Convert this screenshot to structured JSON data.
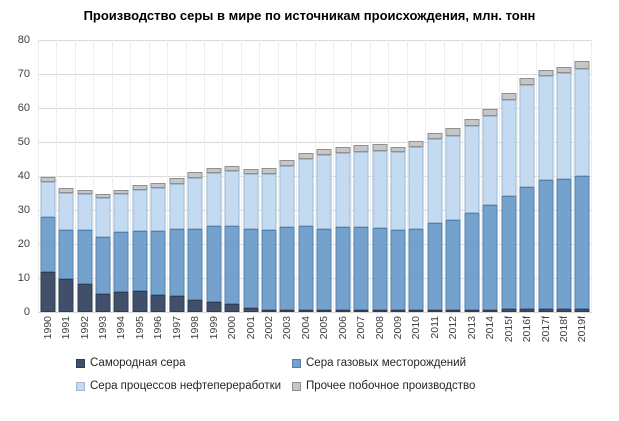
{
  "title": "Производство серы в мире по источникам происхождения, млн. тонн",
  "colors": {
    "native_sulfur": "#424f6a",
    "gas_field_sulfur": "#74a2cd",
    "refinery_sulfur": "#c3daf0",
    "other_byproduct": "#c6c6c6",
    "gridline": "#d9d9d9",
    "axis_text": "#404040"
  },
  "chart_data": {
    "type": "bar",
    "stacked": true,
    "title": "Производство серы в мире по источникам происхождения, млн. тонн",
    "xlabel": "",
    "ylabel": "",
    "unit": "млн. тонн",
    "ylim": [
      0,
      80
    ],
    "yticks": [
      0,
      10,
      20,
      30,
      40,
      50,
      60,
      70,
      80
    ],
    "grid": true,
    "legend_position": "bottom",
    "categories": [
      "1990",
      "1991",
      "1992",
      "1993",
      "1994",
      "1995",
      "1996",
      "1997",
      "1998",
      "1999",
      "2000",
      "2001",
      "2002",
      "2003",
      "2004",
      "2005",
      "2006",
      "2007",
      "2008",
      "2009",
      "2010",
      "2011",
      "2012",
      "2013",
      "2014",
      "2015f",
      "2016f",
      "2017f",
      "2018f",
      "2019f"
    ],
    "series": [
      {
        "name": "Самородная сера",
        "color": "#424f6a",
        "border": "#2f3c55",
        "values": [
          11.9,
          9.8,
          8.3,
          5.4,
          5.9,
          6.1,
          4.9,
          4.6,
          3.4,
          2.9,
          2.5,
          1.2,
          0.7,
          0.5,
          0.4,
          0.7,
          0.7,
          0.7,
          0.7,
          0.2,
          0.5,
          0.5,
          0.7,
          0.5,
          0.5,
          0.8,
          0.8,
          0.8,
          0.8,
          0.8
        ]
      },
      {
        "name": "Сера газовых месторождений",
        "color": "#74a2cd",
        "border": "#5480ac",
        "values": [
          16.0,
          14.4,
          15.9,
          16.7,
          17.7,
          17.6,
          18.8,
          19.7,
          20.9,
          22.3,
          22.7,
          23.1,
          23.3,
          24.3,
          24.8,
          23.8,
          24.3,
          24.3,
          24.0,
          23.4,
          23.7,
          25.7,
          26.3,
          28.6,
          30.9,
          33.3,
          36.0,
          38.0,
          38.3,
          39.1
        ]
      },
      {
        "name": "Сера процессов нефтепереработки",
        "color": "#c3daf0",
        "border": "#9db9d6",
        "values": [
          10.3,
          10.9,
          10.4,
          11.3,
          11.0,
          12.1,
          12.8,
          13.3,
          15.2,
          15.7,
          16.2,
          16.2,
          16.7,
          18.1,
          19.6,
          21.8,
          21.8,
          22.2,
          22.8,
          23.0,
          24.3,
          24.6,
          24.7,
          25.6,
          26.2,
          28.4,
          29.9,
          30.6,
          31.1,
          31.7
        ]
      },
      {
        "name": "Прочее побочное производство",
        "color": "#c6c6c6",
        "border": "#8f8f8f",
        "values": [
          1.6,
          1.4,
          1.4,
          1.4,
          1.4,
          1.5,
          1.5,
          1.7,
          1.7,
          1.6,
          1.6,
          1.7,
          1.8,
          1.7,
          1.8,
          1.7,
          1.7,
          1.8,
          2.0,
          1.6,
          1.7,
          1.8,
          2.3,
          1.9,
          2.0,
          2.0,
          2.0,
          1.9,
          1.9,
          2.3
        ]
      }
    ]
  }
}
